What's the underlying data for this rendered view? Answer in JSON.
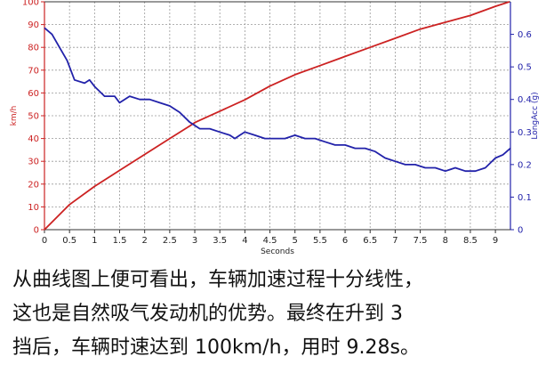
{
  "chart_data": {
    "type": "line",
    "xlabel": "Seconds",
    "x_ticks": [
      0,
      0.5,
      1,
      1.5,
      2,
      2.5,
      3,
      3.5,
      4,
      4.5,
      5,
      5.5,
      6,
      6.5,
      7,
      7.5,
      8,
      8.5,
      9
    ],
    "xlim": [
      0,
      9.3
    ],
    "y_left": {
      "label": "km/h",
      "lim": [
        0,
        100
      ],
      "ticks": [
        0,
        10,
        20,
        30,
        40,
        50,
        60,
        70,
        80,
        90,
        100
      ],
      "color": "#cc2222"
    },
    "y_right": {
      "label": "LongAcc (g)",
      "lim": [
        0,
        0.7
      ],
      "ticks": [
        0,
        0.1,
        0.2,
        0.3,
        0.4,
        0.5,
        0.6
      ],
      "color": "#2222aa"
    },
    "grid": true,
    "series": [
      {
        "name": "km/h",
        "axis": "left",
        "color": "#cc2222",
        "points": [
          [
            0,
            0
          ],
          [
            0.5,
            11
          ],
          [
            1,
            19
          ],
          [
            1.5,
            26
          ],
          [
            2,
            33
          ],
          [
            2.5,
            40
          ],
          [
            2.9,
            45.5
          ],
          [
            3,
            47
          ],
          [
            3.5,
            52
          ],
          [
            4,
            57
          ],
          [
            4.5,
            63
          ],
          [
            5,
            68
          ],
          [
            5.5,
            72
          ],
          [
            6,
            76
          ],
          [
            6.5,
            80
          ],
          [
            7,
            84
          ],
          [
            7.5,
            88
          ],
          [
            8,
            91
          ],
          [
            8.5,
            94
          ],
          [
            9,
            98
          ],
          [
            9.28,
            100
          ]
        ]
      },
      {
        "name": "LongAcc (g)",
        "axis": "right",
        "color": "#2222aa",
        "points": [
          [
            0,
            0.62
          ],
          [
            0.15,
            0.6
          ],
          [
            0.3,
            0.56
          ],
          [
            0.45,
            0.52
          ],
          [
            0.6,
            0.46
          ],
          [
            0.8,
            0.45
          ],
          [
            0.9,
            0.46
          ],
          [
            1.0,
            0.44
          ],
          [
            1.2,
            0.41
          ],
          [
            1.4,
            0.41
          ],
          [
            1.5,
            0.39
          ],
          [
            1.7,
            0.41
          ],
          [
            1.9,
            0.4
          ],
          [
            2.1,
            0.4
          ],
          [
            2.3,
            0.39
          ],
          [
            2.5,
            0.38
          ],
          [
            2.7,
            0.36
          ],
          [
            2.9,
            0.33
          ],
          [
            3.1,
            0.31
          ],
          [
            3.3,
            0.31
          ],
          [
            3.5,
            0.3
          ],
          [
            3.7,
            0.29
          ],
          [
            3.8,
            0.28
          ],
          [
            3.9,
            0.29
          ],
          [
            4.0,
            0.3
          ],
          [
            4.2,
            0.29
          ],
          [
            4.4,
            0.28
          ],
          [
            4.6,
            0.28
          ],
          [
            4.8,
            0.28
          ],
          [
            5.0,
            0.29
          ],
          [
            5.2,
            0.28
          ],
          [
            5.4,
            0.28
          ],
          [
            5.6,
            0.27
          ],
          [
            5.8,
            0.26
          ],
          [
            6.0,
            0.26
          ],
          [
            6.2,
            0.25
          ],
          [
            6.4,
            0.25
          ],
          [
            6.6,
            0.24
          ],
          [
            6.8,
            0.22
          ],
          [
            7.0,
            0.21
          ],
          [
            7.2,
            0.2
          ],
          [
            7.4,
            0.2
          ],
          [
            7.6,
            0.19
          ],
          [
            7.8,
            0.19
          ],
          [
            8.0,
            0.18
          ],
          [
            8.2,
            0.19
          ],
          [
            8.4,
            0.18
          ],
          [
            8.6,
            0.18
          ],
          [
            8.8,
            0.19
          ],
          [
            9.0,
            0.22
          ],
          [
            9.15,
            0.23
          ],
          [
            9.3,
            0.25
          ]
        ]
      }
    ]
  },
  "caption": {
    "lines": [
      "从曲线图上便可看出，车辆加速过程十分线性，",
      "这也是自然吸气发动机的优势。最终在升到 3",
      "挡后，车辆时速达到 100km/h，用时 9.28s。"
    ]
  }
}
